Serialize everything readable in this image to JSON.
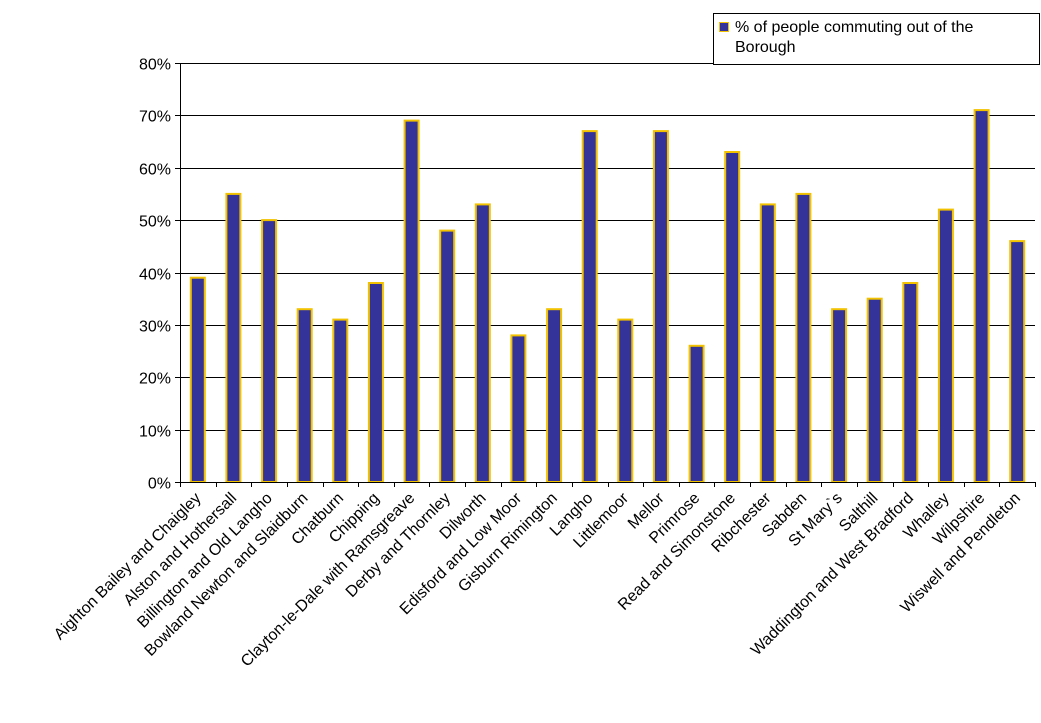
{
  "colors": {
    "bar_fill": "#33339a",
    "bar_stroke": "#f2c200",
    "axis": "#000000",
    "grid": "#000000"
  },
  "chart_data": {
    "type": "bar",
    "title": "",
    "xlabel": "",
    "ylabel": "",
    "ylim": [
      0,
      80
    ],
    "yticks": [
      "0%",
      "10%",
      "20%",
      "30%",
      "40%",
      "50%",
      "60%",
      "70%",
      "80%"
    ],
    "grid": true,
    "legend_position": "top-right",
    "categories": [
      "Aighton Bailey and Chaigley",
      "Alston and Hothersall",
      "Billington and Old Langho",
      "Bowland Newton and Slaidburn",
      "Chatburn",
      "Chipping",
      "Clayton-le-Dale with Ramsgreave",
      "Derby and Thornley",
      "Dilworth",
      "Edisford and Low Moor",
      "Gisburn Rimington",
      "Langho",
      "Littlemoor",
      "Mellor",
      "Primrose",
      "Read and Simonstone",
      "Ribchester",
      "Sabden",
      "St Mary`s",
      "Salthill",
      "Waddington and West Bradford",
      "Whalley",
      "Wilpshire",
      "Wiswell and Pendleton"
    ],
    "series": [
      {
        "name": "% of people commuting out of the Borough",
        "values": [
          39,
          55,
          50,
          33,
          31,
          38,
          69,
          48,
          53,
          28,
          33,
          67,
          31,
          67,
          26,
          63,
          53,
          55,
          33,
          35,
          38,
          52,
          71,
          46
        ]
      }
    ]
  }
}
